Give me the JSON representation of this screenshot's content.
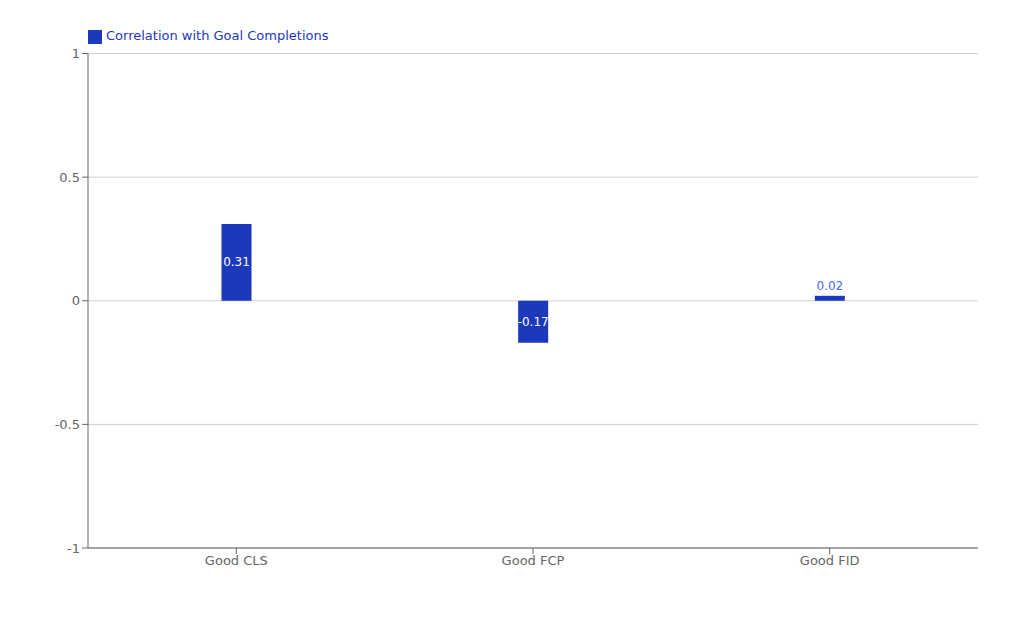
{
  "chart_data": {
    "type": "bar",
    "categories": [
      "Good CLS",
      "Good FCP",
      "Good FID"
    ],
    "series": [
      {
        "name": "Correlation with Goal Completions",
        "color": "#1c39bb",
        "values": [
          0.31,
          -0.17,
          0.02
        ]
      }
    ],
    "ylim": [
      -1,
      1
    ],
    "yticks": [
      -1,
      -0.5,
      0,
      0.5,
      1
    ],
    "grid": true,
    "legend": "upper left",
    "data_labels": true
  }
}
